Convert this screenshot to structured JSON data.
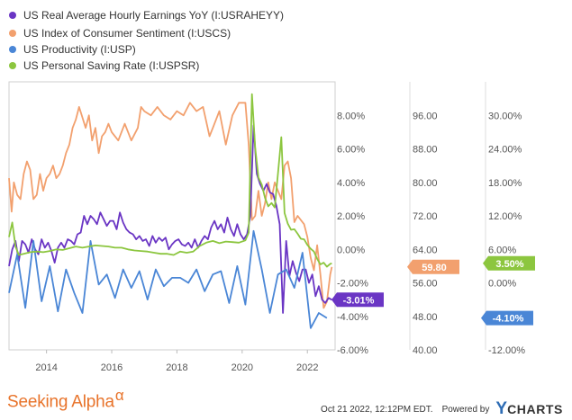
{
  "legend": [
    {
      "label": "US Real Average Hourly Earnings YoY (I:USRAHEYY)",
      "color": "#6a35c4"
    },
    {
      "label": "US Index of Consumer Sentiment (I:USCS)",
      "color": "#f2a06e"
    },
    {
      "label": "US Productivity (I:USP)",
      "color": "#4a86d6"
    },
    {
      "label": "US Personal Saving Rate (I:USPSR)",
      "color": "#8cc63f"
    }
  ],
  "footer": {
    "brand": "Seeking Alpha",
    "brand_symbol": "α",
    "timestamp": "Oct 21 2022, 12:12PM EDT.",
    "powered_by": "Powered by",
    "ycharts_y": "Y",
    "ycharts_rest": "CHARTS"
  },
  "chart_data": {
    "type": "line",
    "x_ticks": [
      "2014",
      "2016",
      "2018",
      "2020",
      "2022"
    ],
    "xlim": [
      2012.85,
      2022.85
    ],
    "axes": [
      {
        "id": "pct",
        "ylim": [
          -6,
          10
        ],
        "ticks": [
          "8.00%",
          "6.00%",
          "4.00%",
          "2.00%",
          "0.00%",
          "-2.00%",
          "-4.00%",
          "-6.00%"
        ],
        "tick_values": [
          8,
          6,
          4,
          2,
          0,
          -2,
          -4,
          -6
        ]
      },
      {
        "id": "sentiment",
        "ylim": [
          40,
          104
        ],
        "ticks": [
          "96.00",
          "88.00",
          "80.00",
          "72.00",
          "64.00",
          "56.00",
          "48.00",
          "40.00"
        ],
        "tick_values": [
          96,
          88,
          80,
          72,
          64,
          56,
          48,
          40
        ]
      },
      {
        "id": "saving",
        "ylim": [
          -12,
          36
        ],
        "ticks": [
          "30.00%",
          "24.00%",
          "18.00%",
          "12.00%",
          "6.00%",
          "0.00%",
          "-6.00%",
          "-12.00%"
        ],
        "tick_values": [
          30,
          24,
          18,
          12,
          6,
          0,
          -6,
          -12
        ]
      }
    ],
    "series": [
      {
        "name": "US Index of Consumer Sentiment (I:USCS)",
        "axis": "sentiment",
        "color": "#f2a06e",
        "last_label": "59.80",
        "x": [
          2012.85,
          2012.93,
          2013.0,
          2013.1,
          2013.2,
          2013.3,
          2013.4,
          2013.5,
          2013.6,
          2013.7,
          2013.8,
          2013.9,
          2014.0,
          2014.1,
          2014.2,
          2014.3,
          2014.4,
          2014.5,
          2014.6,
          2014.7,
          2014.8,
          2014.9,
          2015.0,
          2015.1,
          2015.2,
          2015.3,
          2015.4,
          2015.5,
          2015.6,
          2015.7,
          2015.8,
          2015.9,
          2016.0,
          2016.2,
          2016.4,
          2016.6,
          2016.8,
          2016.9,
          2017.0,
          2017.2,
          2017.4,
          2017.6,
          2017.8,
          2018.0,
          2018.2,
          2018.4,
          2018.6,
          2018.8,
          2019.0,
          2019.1,
          2019.3,
          2019.5,
          2019.7,
          2019.9,
          2020.1,
          2020.2,
          2020.3,
          2020.4,
          2020.5,
          2020.6,
          2020.7,
          2020.8,
          2020.9,
          2021.0,
          2021.2,
          2021.3,
          2021.4,
          2021.5,
          2021.6,
          2021.7,
          2021.8,
          2021.9,
          2022.0,
          2022.1,
          2022.2,
          2022.3,
          2022.4,
          2022.5,
          2022.6,
          2022.7,
          2022.75
        ],
        "values": [
          81.0,
          73.0,
          80.0,
          77.0,
          76.0,
          82.0,
          85.0,
          83.0,
          76.0,
          77.0,
          82.0,
          78.0,
          81.0,
          82.0,
          84.0,
          81.0,
          82.0,
          84.0,
          87.0,
          89.0,
          93.0,
          95.0,
          98.0,
          95.5,
          93.0,
          96.0,
          90.0,
          93.0,
          87.0,
          91.0,
          92.0,
          94.0,
          92.0,
          90.0,
          94.0,
          90.0,
          93.0,
          98.0,
          97.0,
          96.0,
          98.0,
          96.0,
          95.0,
          97.0,
          96.0,
          99.0,
          97.0,
          98.0,
          91.0,
          93.0,
          97.0,
          89.0,
          96.0,
          99.0,
          99.0,
          89.0,
          71.0,
          72.0,
          78.0,
          72.0,
          75.0,
          80.0,
          76.0,
          80.0,
          76.0,
          84.0,
          85.0,
          81.0,
          70.5,
          72.0,
          71.0,
          70.0,
          67.0,
          62.0,
          59.0,
          65.0,
          58.0,
          50.0,
          51.5,
          58.0,
          59.8
        ]
      },
      {
        "name": "US Real Average Hourly Earnings YoY (I:USRAHEYY)",
        "axis": "pct",
        "color": "#6a35c4",
        "last_label": "-3.01%",
        "x": [
          2012.85,
          2012.95,
          2013.05,
          2013.15,
          2013.25,
          2013.35,
          2013.45,
          2013.55,
          2013.65,
          2013.75,
          2013.85,
          2013.95,
          2014.05,
          2014.15,
          2014.25,
          2014.35,
          2014.45,
          2014.55,
          2014.65,
          2014.75,
          2014.85,
          2014.95,
          2015.05,
          2015.15,
          2015.25,
          2015.35,
          2015.45,
          2015.55,
          2015.65,
          2015.75,
          2015.85,
          2015.95,
          2016.05,
          2016.15,
          2016.25,
          2016.35,
          2016.45,
          2016.55,
          2016.65,
          2016.75,
          2016.85,
          2016.95,
          2017.05,
          2017.15,
          2017.25,
          2017.35,
          2017.45,
          2017.55,
          2017.65,
          2017.75,
          2017.85,
          2017.95,
          2018.05,
          2018.15,
          2018.25,
          2018.35,
          2018.45,
          2018.55,
          2018.65,
          2018.75,
          2018.85,
          2018.95,
          2019.05,
          2019.15,
          2019.25,
          2019.35,
          2019.45,
          2019.55,
          2019.65,
          2019.75,
          2019.85,
          2019.95,
          2020.05,
          2020.15,
          2020.25,
          2020.35,
          2020.45,
          2020.55,
          2020.65,
          2020.75,
          2020.85,
          2020.95,
          2021.05,
          2021.15,
          2021.25,
          2021.35,
          2021.45,
          2021.55,
          2021.65,
          2021.75,
          2021.85,
          2021.95,
          2022.05,
          2022.15,
          2022.25,
          2022.35,
          2022.45,
          2022.55,
          2022.65,
          2022.75
        ],
        "values": [
          -1.0,
          0.0,
          0.5,
          -0.7,
          0.5,
          0.3,
          -0.2,
          0.6,
          0.0,
          -0.3,
          0.6,
          0.1,
          0.4,
          -0.1,
          -0.8,
          0.1,
          0.4,
          0.1,
          0.6,
          0.5,
          0.3,
          0.9,
          1.0,
          2.0,
          1.5,
          2.0,
          1.8,
          1.5,
          2.2,
          1.8,
          1.4,
          1.7,
          1.7,
          1.2,
          2.2,
          1.6,
          1.2,
          1.0,
          0.9,
          0.6,
          0.8,
          0.5,
          0.6,
          0.2,
          0.8,
          0.4,
          0.7,
          0.5,
          0.7,
          0.0,
          0.3,
          0.5,
          0.6,
          0.3,
          0.2,
          0.4,
          0.1,
          0.6,
          0.1,
          0.5,
          0.8,
          0.6,
          1.3,
          1.7,
          1.2,
          1.5,
          1.0,
          1.9,
          1.2,
          0.8,
          1.5,
          0.9,
          0.6,
          0.9,
          2.0,
          7.4,
          4.5,
          3.9,
          3.5,
          3.9,
          3.4,
          3.3,
          2.6,
          1.5,
          -3.8,
          0.5,
          -1.6,
          -0.7,
          -1.4,
          -1.9,
          -1.2,
          -1.2,
          -2.0,
          -1.5,
          -2.8,
          -2.2,
          -3.0,
          -3.2,
          -2.9,
          -3.01
        ]
      },
      {
        "name": "US Productivity (I:USP)",
        "axis": "pct",
        "color": "#4a86d6",
        "last_label": "-4.10%",
        "x": [
          2012.85,
          2013.1,
          2013.35,
          2013.6,
          2013.85,
          2014.1,
          2014.35,
          2014.6,
          2014.85,
          2015.1,
          2015.35,
          2015.6,
          2015.85,
          2016.1,
          2016.35,
          2016.6,
          2016.85,
          2017.1,
          2017.35,
          2017.6,
          2017.85,
          2018.1,
          2018.35,
          2018.6,
          2018.85,
          2019.1,
          2019.35,
          2019.6,
          2019.85,
          2020.1,
          2020.35,
          2020.6,
          2020.85,
          2021.1,
          2021.35,
          2021.6,
          2021.85,
          2022.1,
          2022.35,
          2022.6
        ],
        "values": [
          -2.6,
          -0.3,
          -3.5,
          0.5,
          -3.1,
          -1.0,
          -3.7,
          -1.2,
          -2.6,
          -3.8,
          0.5,
          -2.1,
          -1.5,
          -2.9,
          -1.2,
          -2.3,
          -1.3,
          -3.0,
          -1.2,
          -2.2,
          -1.7,
          -1.7,
          -2.0,
          -1.2,
          -2.5,
          -1.5,
          -1.3,
          -3.2,
          -1.0,
          -3.3,
          1.1,
          -1.2,
          -3.8,
          -1.5,
          -1.2,
          -2.3,
          -0.2,
          -4.7,
          -3.8,
          -4.1
        ]
      },
      {
        "name": "US Personal Saving Rate (I:USPSR)",
        "axis": "saving",
        "color": "#8cc63f",
        "last_label": "3.50%",
        "x": [
          2012.85,
          2012.95,
          2013.05,
          2013.15,
          2013.3,
          2013.5,
          2013.7,
          2013.9,
          2014.1,
          2014.3,
          2014.5,
          2014.7,
          2014.9,
          2015.1,
          2015.3,
          2015.5,
          2015.7,
          2015.9,
          2016.1,
          2016.3,
          2016.5,
          2016.7,
          2016.9,
          2017.1,
          2017.3,
          2017.5,
          2017.7,
          2017.9,
          2018.1,
          2018.3,
          2018.5,
          2018.7,
          2018.9,
          2019.1,
          2019.3,
          2019.5,
          2019.7,
          2019.9,
          2020.1,
          2020.2,
          2020.3,
          2020.4,
          2020.5,
          2020.6,
          2020.7,
          2020.8,
          2020.9,
          2021.0,
          2021.1,
          2021.2,
          2021.3,
          2021.4,
          2021.5,
          2021.6,
          2021.7,
          2021.8,
          2021.9,
          2022.0,
          2022.1,
          2022.2,
          2022.3,
          2022.4,
          2022.5,
          2022.6,
          2022.7,
          2022.75
        ],
        "values": [
          8.2,
          10.8,
          6.5,
          5.0,
          5.2,
          5.5,
          5.6,
          5.5,
          5.7,
          6.0,
          5.9,
          6.2,
          6.5,
          6.3,
          6.5,
          6.7,
          6.6,
          6.5,
          6.3,
          6.3,
          6.0,
          5.8,
          5.7,
          5.6,
          5.4,
          5.2,
          5.2,
          5.0,
          5.6,
          5.4,
          5.6,
          6.6,
          7.2,
          7.5,
          7.1,
          7.4,
          7.3,
          7.2,
          7.6,
          9.0,
          33.8,
          24.2,
          18.9,
          17.6,
          15.2,
          13.7,
          14.3,
          13.5,
          19.6,
          26.1,
          12.5,
          10.6,
          9.5,
          9.6,
          8.8,
          7.9,
          7.8,
          6.8,
          6.1,
          5.6,
          4.3,
          3.3,
          3.6,
          2.9,
          3.4,
          3.5
        ]
      }
    ]
  }
}
